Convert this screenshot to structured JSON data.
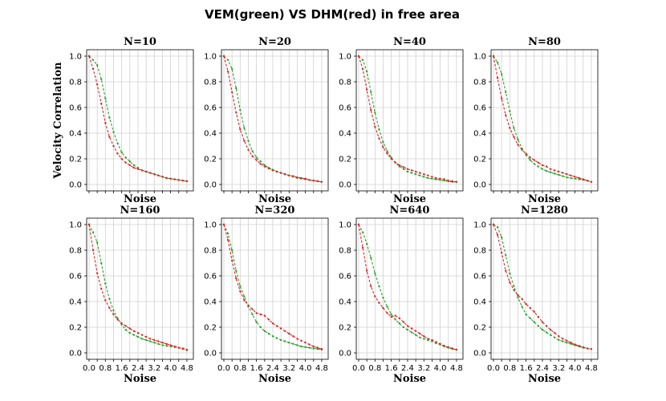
{
  "chart_data": {
    "type": "line",
    "title": "VEM(green) VS DHM(red) in free area",
    "xlabel": "Noise",
    "ylabel": "Velocity Correlation",
    "xlim": [
      0,
      5
    ],
    "ylim": [
      0,
      1
    ],
    "x_ticks": [
      "0.0",
      "0.4",
      "0.8",
      "1.2",
      "1.6",
      "2.0",
      "2.4",
      "2.8",
      "3.2",
      "3.6",
      "4.0",
      "4.4",
      "4.8"
    ],
    "x_tick_labels": [
      "0.0",
      "0.8",
      "1.6",
      "2.4",
      "3.2",
      "4.0",
      "4.8"
    ],
    "y_ticks": [
      "0.0",
      "0.2",
      "0.4",
      "0.6",
      "0.8",
      "1.0"
    ],
    "x": [
      0.0,
      0.2,
      0.4,
      0.6,
      0.8,
      1.0,
      1.2,
      1.4,
      1.6,
      1.8,
      2.0,
      2.2,
      2.4,
      2.6,
      2.8,
      3.0,
      3.2,
      3.4,
      3.6,
      3.8,
      4.0,
      4.2,
      4.4,
      4.6,
      4.8
    ],
    "panels": [
      {
        "title": "N=10",
        "series": [
          {
            "name": "VEM",
            "color": "#2ca02c",
            "values": [
              1.0,
              0.97,
              0.93,
              0.82,
              0.67,
              0.52,
              0.41,
              0.32,
              0.25,
              0.21,
              0.18,
              0.15,
              0.13,
              0.11,
              0.1,
              0.09,
              0.08,
              0.07,
              0.06,
              0.05,
              0.045,
              0.04,
              0.035,
              0.03,
              0.025
            ]
          },
          {
            "name": "DHM",
            "color": "#d62728",
            "values": [
              1.0,
              0.9,
              0.78,
              0.63,
              0.48,
              0.37,
              0.3,
              0.24,
              0.2,
              0.17,
              0.15,
              0.13,
              0.12,
              0.11,
              0.1,
              0.09,
              0.08,
              0.07,
              0.06,
              0.05,
              0.045,
              0.04,
              0.035,
              0.03,
              0.025
            ]
          }
        ]
      },
      {
        "title": "N=20",
        "series": [
          {
            "name": "VEM",
            "color": "#2ca02c",
            "values": [
              1.0,
              0.97,
              0.9,
              0.75,
              0.58,
              0.44,
              0.34,
              0.26,
              0.21,
              0.18,
              0.15,
              0.13,
              0.115,
              0.1,
              0.09,
              0.08,
              0.07,
              0.06,
              0.05,
              0.045,
              0.04,
              0.035,
              0.03,
              0.025,
              0.02
            ]
          },
          {
            "name": "DHM",
            "color": "#d62728",
            "values": [
              1.0,
              0.88,
              0.72,
              0.56,
              0.43,
              0.34,
              0.27,
              0.22,
              0.19,
              0.16,
              0.14,
              0.125,
              0.11,
              0.1,
              0.09,
              0.08,
              0.07,
              0.065,
              0.055,
              0.05,
              0.045,
              0.035,
              0.03,
              0.025,
              0.02
            ]
          }
        ]
      },
      {
        "title": "N=40",
        "series": [
          {
            "name": "VEM",
            "color": "#2ca02c",
            "values": [
              1.0,
              0.97,
              0.88,
              0.72,
              0.56,
              0.43,
              0.33,
              0.26,
              0.21,
              0.17,
              0.14,
              0.12,
              0.1,
              0.09,
              0.08,
              0.07,
              0.06,
              0.05,
              0.045,
              0.04,
              0.035,
              0.03,
              0.025,
              0.02,
              0.02
            ]
          },
          {
            "name": "DHM",
            "color": "#d62728",
            "values": [
              1.0,
              0.9,
              0.74,
              0.58,
              0.45,
              0.36,
              0.29,
              0.24,
              0.2,
              0.17,
              0.15,
              0.135,
              0.12,
              0.11,
              0.1,
              0.09,
              0.08,
              0.07,
              0.06,
              0.05,
              0.045,
              0.04,
              0.03,
              0.025,
              0.02
            ]
          }
        ]
      },
      {
        "title": "N=80",
        "series": [
          {
            "name": "VEM",
            "color": "#2ca02c",
            "values": [
              1.0,
              0.95,
              0.86,
              0.72,
              0.57,
              0.44,
              0.35,
              0.28,
              0.23,
              0.19,
              0.16,
              0.14,
              0.12,
              0.105,
              0.095,
              0.085,
              0.075,
              0.065,
              0.055,
              0.05,
              0.045,
              0.04,
              0.035,
              0.03,
              0.02
            ]
          },
          {
            "name": "DHM",
            "color": "#d62728",
            "values": [
              1.0,
              0.83,
              0.67,
              0.54,
              0.44,
              0.37,
              0.31,
              0.27,
              0.24,
              0.21,
              0.19,
              0.17,
              0.15,
              0.14,
              0.12,
              0.11,
              0.1,
              0.09,
              0.08,
              0.07,
              0.06,
              0.05,
              0.04,
              0.03,
              0.02
            ]
          }
        ]
      },
      {
        "title": "N=160",
        "series": [
          {
            "name": "VEM",
            "color": "#2ca02c",
            "values": [
              1.0,
              0.94,
              0.86,
              0.7,
              0.54,
              0.42,
              0.33,
              0.27,
              0.22,
              0.18,
              0.155,
              0.14,
              0.125,
              0.11,
              0.1,
              0.09,
              0.08,
              0.07,
              0.06,
              0.055,
              0.05,
              0.045,
              0.04,
              0.03,
              0.02
            ]
          },
          {
            "name": "DHM",
            "color": "#d62728",
            "values": [
              1.0,
              0.8,
              0.62,
              0.5,
              0.41,
              0.35,
              0.3,
              0.26,
              0.23,
              0.21,
              0.19,
              0.17,
              0.155,
              0.14,
              0.125,
              0.11,
              0.1,
              0.09,
              0.08,
              0.07,
              0.06,
              0.05,
              0.04,
              0.035,
              0.025
            ]
          }
        ]
      },
      {
        "title": "N=320",
        "series": [
          {
            "name": "VEM",
            "color": "#2ca02c",
            "values": [
              1.0,
              0.93,
              0.8,
              0.64,
              0.52,
              0.44,
              0.36,
              0.3,
              0.24,
              0.2,
              0.17,
              0.15,
              0.13,
              0.115,
              0.1,
              0.09,
              0.08,
              0.07,
              0.06,
              0.05,
              0.045,
              0.04,
              0.035,
              0.03,
              0.025
            ]
          },
          {
            "name": "DHM",
            "color": "#d62728",
            "values": [
              1.0,
              0.88,
              0.72,
              0.58,
              0.48,
              0.41,
              0.37,
              0.34,
              0.31,
              0.3,
              0.29,
              0.26,
              0.23,
              0.21,
              0.19,
              0.17,
              0.15,
              0.13,
              0.11,
              0.095,
              0.08,
              0.065,
              0.05,
              0.04,
              0.03
            ]
          }
        ]
      },
      {
        "title": "N=640",
        "series": [
          {
            "name": "VEM",
            "color": "#2ca02c",
            "values": [
              1.0,
              0.94,
              0.85,
              0.74,
              0.62,
              0.52,
              0.43,
              0.36,
              0.3,
              0.26,
              0.23,
              0.2,
              0.18,
              0.16,
              0.14,
              0.12,
              0.11,
              0.1,
              0.09,
              0.075,
              0.065,
              0.05,
              0.04,
              0.03,
              0.025
            ]
          },
          {
            "name": "DHM",
            "color": "#d62728",
            "values": [
              1.0,
              0.82,
              0.64,
              0.52,
              0.44,
              0.39,
              0.35,
              0.31,
              0.28,
              0.29,
              0.27,
              0.24,
              0.21,
              0.19,
              0.17,
              0.15,
              0.13,
              0.11,
              0.1,
              0.085,
              0.07,
              0.055,
              0.045,
              0.035,
              0.025
            ]
          }
        ]
      },
      {
        "title": "N=1280",
        "series": [
          {
            "name": "VEM",
            "color": "#2ca02c",
            "values": [
              1.0,
              0.98,
              0.9,
              0.76,
              0.62,
              0.52,
              0.43,
              0.36,
              0.3,
              0.27,
              0.24,
              0.21,
              0.18,
              0.16,
              0.14,
              0.12,
              0.1,
              0.09,
              0.08,
              0.07,
              0.06,
              0.05,
              0.04,
              0.035,
              0.03
            ]
          },
          {
            "name": "DHM",
            "color": "#d62728",
            "values": [
              1.0,
              0.92,
              0.78,
              0.64,
              0.55,
              0.49,
              0.45,
              0.42,
              0.38,
              0.35,
              0.32,
              0.28,
              0.24,
              0.21,
              0.18,
              0.155,
              0.13,
              0.11,
              0.095,
              0.08,
              0.065,
              0.055,
              0.045,
              0.035,
              0.03
            ]
          }
        ]
      }
    ]
  }
}
